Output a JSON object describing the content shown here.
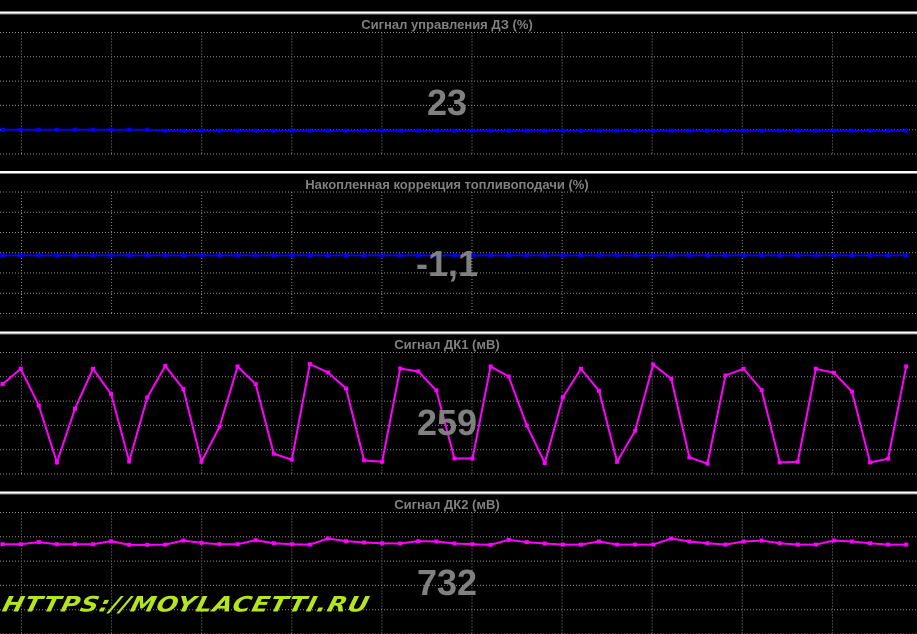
{
  "watermark": "HTTPS://MOYLACETTI.RU",
  "chart_data": [
    {
      "type": "line",
      "title": "Сигнал управления ДЗ  (%)",
      "current_value": "23",
      "color": "#0000ff",
      "grid": true,
      "ylim": [
        0,
        120
      ],
      "x": [
        0,
        1,
        2,
        3,
        4,
        5,
        6,
        7,
        8,
        9,
        10,
        11,
        12,
        13,
        14,
        15,
        16,
        17,
        18,
        19,
        20,
        21,
        22,
        23,
        24,
        25,
        26,
        27,
        28,
        29,
        30,
        31,
        32,
        33,
        34,
        35,
        36,
        37,
        38,
        39,
        40,
        41,
        42,
        43,
        44,
        45,
        46,
        47,
        48,
        49,
        50
      ],
      "values": [
        24,
        24,
        24,
        24,
        24,
        24,
        24,
        24,
        24,
        23,
        23,
        23,
        23,
        23,
        23,
        23,
        23,
        23,
        23,
        23,
        23,
        23,
        23,
        23,
        23,
        23,
        23,
        23,
        23,
        23,
        23,
        23,
        23,
        23,
        23,
        23,
        23,
        23,
        23,
        23,
        23,
        23,
        23,
        23,
        23,
        23,
        23,
        23,
        23,
        23,
        23
      ]
    },
    {
      "type": "line",
      "title": "Накопленная коррекция топливоподачи  (%)",
      "current_value": "-1,1",
      "color": "#0000ff",
      "grid": true,
      "ylim": [
        -25,
        25
      ],
      "x": [
        0,
        1,
        2,
        3,
        4,
        5,
        6,
        7,
        8,
        9,
        10,
        11,
        12,
        13,
        14,
        15,
        16,
        17,
        18,
        19,
        20,
        21,
        22,
        23,
        24,
        25,
        26,
        27,
        28,
        29,
        30,
        31,
        32,
        33,
        34,
        35,
        36,
        37,
        38,
        39,
        40,
        41,
        42,
        43,
        44,
        45,
        46,
        47,
        48,
        49,
        50
      ],
      "values": [
        -1.1,
        -1.1,
        -1.1,
        -1.1,
        -1.1,
        -1.1,
        -1.1,
        -1.1,
        -1.1,
        -1.1,
        -1.1,
        -1.1,
        -1.1,
        -1.1,
        -1.1,
        -1.1,
        -1.1,
        -1.1,
        -1.1,
        -1.1,
        -1.1,
        -1.1,
        -1.1,
        -1.1,
        -1.1,
        -1.1,
        -1.1,
        -1.1,
        -1.1,
        -1.1,
        -1.1,
        -1.1,
        -1.1,
        -1.1,
        -1.1,
        -1.1,
        -1.1,
        -1.1,
        -1.1,
        -1.1,
        -1.1,
        -1.1,
        -1.1,
        -1.1,
        -1.1,
        -1.1,
        -1.1,
        -1.1,
        -1.1,
        -1.1,
        -1.1
      ]
    },
    {
      "type": "line",
      "title": "Сигнал ДК1  (мВ)",
      "current_value": "259",
      "color": "#ff00ff",
      "grid": true,
      "ylim": [
        0,
        1000
      ],
      "x": [
        0,
        1,
        2,
        3,
        4,
        5,
        6,
        7,
        8,
        9,
        10,
        11,
        12,
        13,
        14,
        15,
        16,
        17,
        18,
        19,
        20,
        21,
        22,
        23,
        24,
        25,
        26,
        27,
        28,
        29,
        30,
        31,
        32,
        33,
        34,
        35,
        36,
        37,
        38,
        39,
        40,
        41,
        42,
        43,
        44,
        45,
        46,
        47,
        48,
        49,
        50
      ],
      "values": [
        740,
        866,
        564,
        95,
        537,
        866,
        658,
        104,
        630,
        890,
        699,
        101,
        389,
        885,
        740,
        167,
        118,
        905,
        836,
        704,
        112,
        101,
        868,
        844,
        688,
        128,
        128,
        885,
        803,
        400,
        90,
        630,
        866,
        685,
        101,
        356,
        901,
        784,
        137,
        85,
        811,
        866,
        691,
        95,
        101,
        866,
        833,
        678,
        95,
        126,
        885
      ]
    },
    {
      "type": "line",
      "title": "Сигнал ДК2  (мВ)",
      "current_value": "732",
      "color": "#ff00ff",
      "grid": true,
      "ylim": [
        0,
        1000
      ],
      "x": [
        0,
        1,
        2,
        3,
        4,
        5,
        6,
        7,
        8,
        9,
        10,
        11,
        12,
        13,
        14,
        15,
        16,
        17,
        18,
        19,
        20,
        21,
        22,
        23,
        24,
        25,
        26,
        27,
        28,
        29,
        30,
        31,
        32,
        33,
        34,
        35,
        36,
        37,
        38,
        39,
        40,
        41,
        42,
        43,
        44,
        45,
        46,
        47,
        48,
        49,
        50
      ],
      "values": [
        739,
        739,
        756,
        739,
        739,
        739,
        764,
        734,
        734,
        736,
        769,
        750,
        739,
        739,
        772,
        747,
        739,
        736,
        786,
        764,
        753,
        747,
        745,
        764,
        761,
        745,
        739,
        734,
        775,
        756,
        745,
        736,
        736,
        761,
        736,
        736,
        736,
        786,
        761,
        747,
        736,
        761,
        769,
        747,
        736,
        736,
        769,
        761,
        747,
        736,
        736
      ]
    }
  ]
}
